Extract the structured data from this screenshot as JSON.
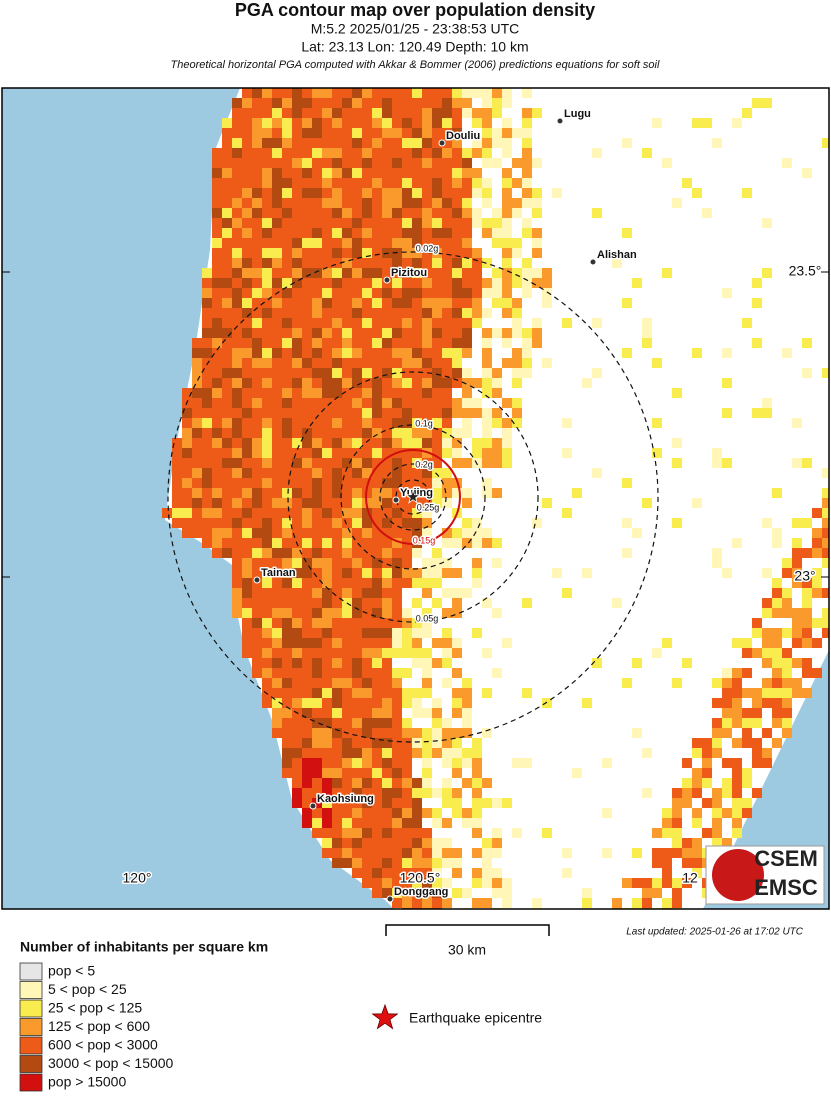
{
  "header": {
    "title": "PGA contour map over population density",
    "subtitle": "M:5.2 2025/01/25 - 23:38:53 UTC",
    "location": "Lat: 23.13 Lon: 120.49 Depth: 10 km",
    "note": "Theoretical horizontal PGA computed with Akkar & Bommer (2006) predictions equations for soft soil"
  },
  "map": {
    "cities": [
      "Lugu",
      "Douliu",
      "Alishan",
      "Pizitou",
      "Yujing",
      "Tainan",
      "Kaohsiung",
      "Donggang"
    ],
    "contours": [
      {
        "label": "0.02g",
        "color": "#111111"
      },
      {
        "label": "0.05g",
        "color": "#111111"
      },
      {
        "label": "0.1g",
        "color": "#111111"
      },
      {
        "label": "0.15g",
        "color": "#d01010"
      },
      {
        "label": "0.2g",
        "color": "#111111"
      },
      {
        "label": "0.25g",
        "color": "#111111"
      }
    ],
    "lat_labels": [
      "23.5°",
      "23°"
    ],
    "lon_labels": [
      "120°",
      "120.5°",
      "12"
    ]
  },
  "scale_bar": "30 km",
  "last_updated": "Last updated: 2025-01-26 at 17:02 UTC",
  "logo": [
    "CSEM",
    "EMSC"
  ],
  "legend": {
    "title": "Number of inhabitants per square km",
    "items": [
      {
        "label": "pop < 5",
        "color": "#e6e6e6"
      },
      {
        "label": "5 < pop < 25",
        "color": "#fff6b8"
      },
      {
        "label": "25 < pop < 125",
        "color": "#f9ec4e"
      },
      {
        "label": "125 < pop < 600",
        "color": "#fb9a2c"
      },
      {
        "label": "600 < pop < 3000",
        "color": "#ee5a17"
      },
      {
        "label": "3000 < pop < 15000",
        "color": "#b24a12"
      },
      {
        "label": "pop > 15000",
        "color": "#d21010"
      }
    ],
    "epicentre": "Earthquake epicentre"
  }
}
